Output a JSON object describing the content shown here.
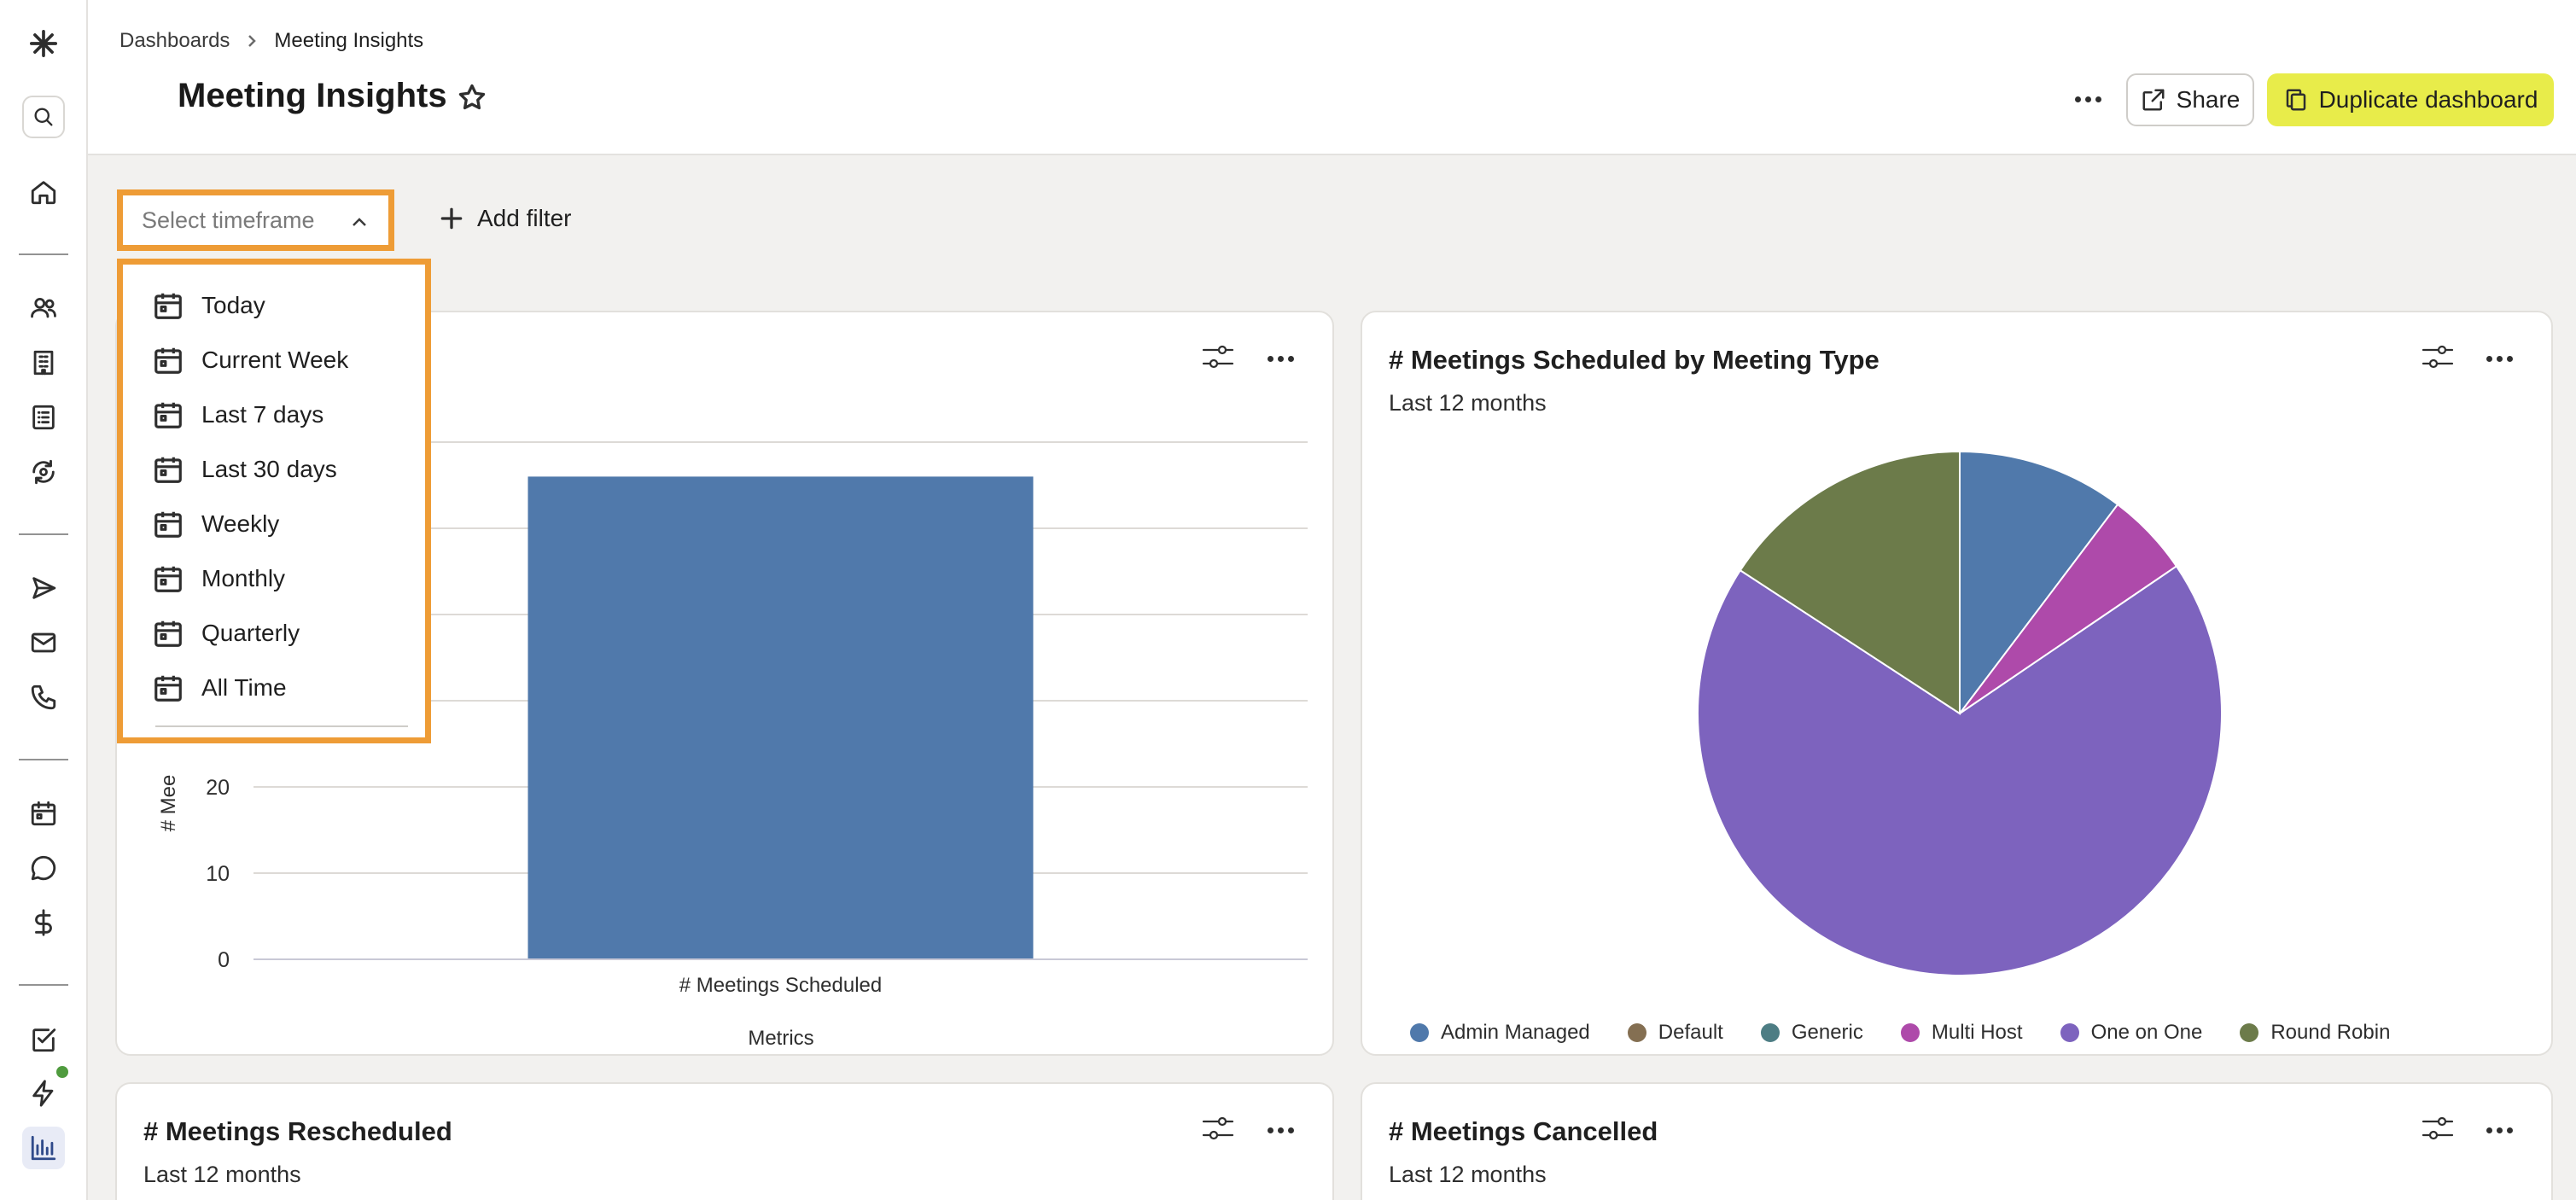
{
  "breadcrumb": {
    "root": "Dashboards",
    "current": "Meeting Insights"
  },
  "page": {
    "title": "Meeting Insights"
  },
  "header_actions": {
    "share_label": "Share",
    "duplicate_label": "Duplicate dashboard"
  },
  "filters": {
    "timeframe_placeholder": "Select timeframe",
    "add_filter_label": "Add filter"
  },
  "timeframe_menu": {
    "items": [
      "Today",
      "Current Week",
      "Last 7 days",
      "Last 30 days",
      "Weekly",
      "Monthly",
      "Quarterly",
      "All Time"
    ]
  },
  "sidebar": {
    "icons": [
      "asterisk-logo-icon",
      "search-icon",
      "home-icon",
      "people-icon",
      "building-icon",
      "list-icon",
      "refresh-icon",
      "send-icon",
      "mail-icon",
      "phone-icon",
      "calendar-icon",
      "chat-icon",
      "dollar-icon",
      "checkbox-icon",
      "lightning-icon",
      "analytics-icon"
    ],
    "active": "analytics-icon",
    "notification_color": "#4f9b3e"
  },
  "colors": {
    "accent_highlight": "#ee9c36",
    "duplicate_button": "#e8ec4a",
    "bar_blue": "#5079ab"
  },
  "cards": {
    "scheduled_total": {
      "ylabel_partial": "# Mee",
      "xtick": "# Meetings Scheduled",
      "xlabel": "Metrics"
    },
    "by_type": {
      "title": "# Meetings Scheduled by Meeting Type",
      "subtitle": "Last 12 months"
    },
    "rescheduled": {
      "title": "# Meetings Rescheduled",
      "subtitle": "Last 12 months"
    },
    "cancelled": {
      "title": "# Meetings Cancelled",
      "subtitle": "Last 12 months"
    }
  },
  "chart_data": [
    {
      "type": "bar",
      "categories": [
        "# Meetings Scheduled"
      ],
      "values": [
        56
      ],
      "xlabel": "Metrics",
      "ylabel": "# Mee",
      "ytick_labels": [
        "0",
        "10",
        "20"
      ],
      "ylim": [
        0,
        60
      ],
      "grid": true,
      "color": "#5079ab"
    },
    {
      "type": "pie",
      "title": "# Meetings Scheduled by Meeting Type",
      "subtitle": "Last 12 months",
      "legend_position": "bottom",
      "slices": [
        {
          "name": "Admin Managed",
          "value": 10.3,
          "color": "#5079ab"
        },
        {
          "name": "Default",
          "value": 0,
          "color": "#846f52"
        },
        {
          "name": "Generic",
          "value": 0,
          "color": "#4d7d84"
        },
        {
          "name": "Multi Host",
          "value": 5.2,
          "color": "#ae4aaa"
        },
        {
          "name": "One on One",
          "value": 68.7,
          "color": "#7d63be"
        },
        {
          "name": "Round Robin",
          "value": 15.8,
          "color": "#6c7b4a"
        }
      ]
    }
  ]
}
